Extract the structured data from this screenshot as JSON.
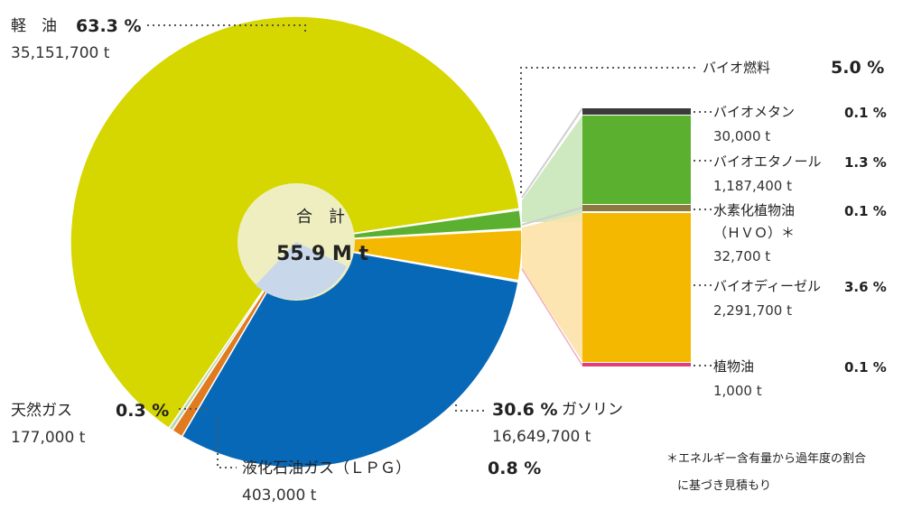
{
  "chart_data": {
    "type": "pie",
    "center": {
      "label": "合　計",
      "value": "55.9 M t"
    },
    "slices": [
      {
        "key": "diesel",
        "label": "軽　油",
        "percent_label": "63.3 %",
        "value_label": "35,151,700 t",
        "percent": 63.3,
        "value": 35151700,
        "color": "#d6d600"
      },
      {
        "key": "natgas",
        "label": "天然ガス",
        "percent_label": "0.3 %",
        "value_label": "177,000 t",
        "percent": 0.3,
        "value": 177000,
        "color": "#b8d8b0"
      },
      {
        "key": "lpg",
        "label": "液化石油ガス（ＬＰＧ）",
        "percent_label": "0.8 %",
        "value_label": "403,000 t",
        "percent": 0.8,
        "value": 403000,
        "color": "#e07b20"
      },
      {
        "key": "gasoline",
        "label": "ガソリン",
        "percent_label": "30.6 %",
        "value_label": "16,649,700 t",
        "percent": 30.6,
        "value": 16649700,
        "color": "#0868b8"
      },
      {
        "key": "bio",
        "label": "バイオ燃料",
        "percent_label": "5.0 %",
        "percent": 5.0,
        "color": "#f0b400"
      }
    ],
    "breakdown": {
      "title": "バイオ燃料",
      "percent_label": "5.0 %",
      "items": [
        {
          "label": "バイオメタン",
          "value_label": "30,000 t",
          "percent_label": "0.1 %",
          "value": 30000,
          "percent": 0.1,
          "color": "#3a3a3a"
        },
        {
          "label": "バイオエタノール",
          "value_label": "1,187,400 t",
          "percent_label": "1.3 %",
          "value": 1187400,
          "percent": 1.3,
          "color": "#5cb030"
        },
        {
          "label": "水素化植物油",
          "label2": "（ＨＶＯ）＊",
          "value_label": "32,700 t",
          "percent_label": "0.1 %",
          "value": 32700,
          "percent": 0.1,
          "color": "#8a7a40"
        },
        {
          "label": "バイオディーゼル",
          "value_label": "2,291,700 t",
          "percent_label": "3.6 %",
          "value": 2291700,
          "percent": 3.6,
          "color": "#f5b800"
        },
        {
          "label": "植物油",
          "value_label": "1,000 t",
          "percent_label": "0.1 %",
          "value": 1000,
          "percent": 0.1,
          "color": "#e0407a"
        }
      ]
    },
    "note": [
      "＊エネルギー含有量から過年度の割合",
      "に基づき見積もり"
    ]
  }
}
